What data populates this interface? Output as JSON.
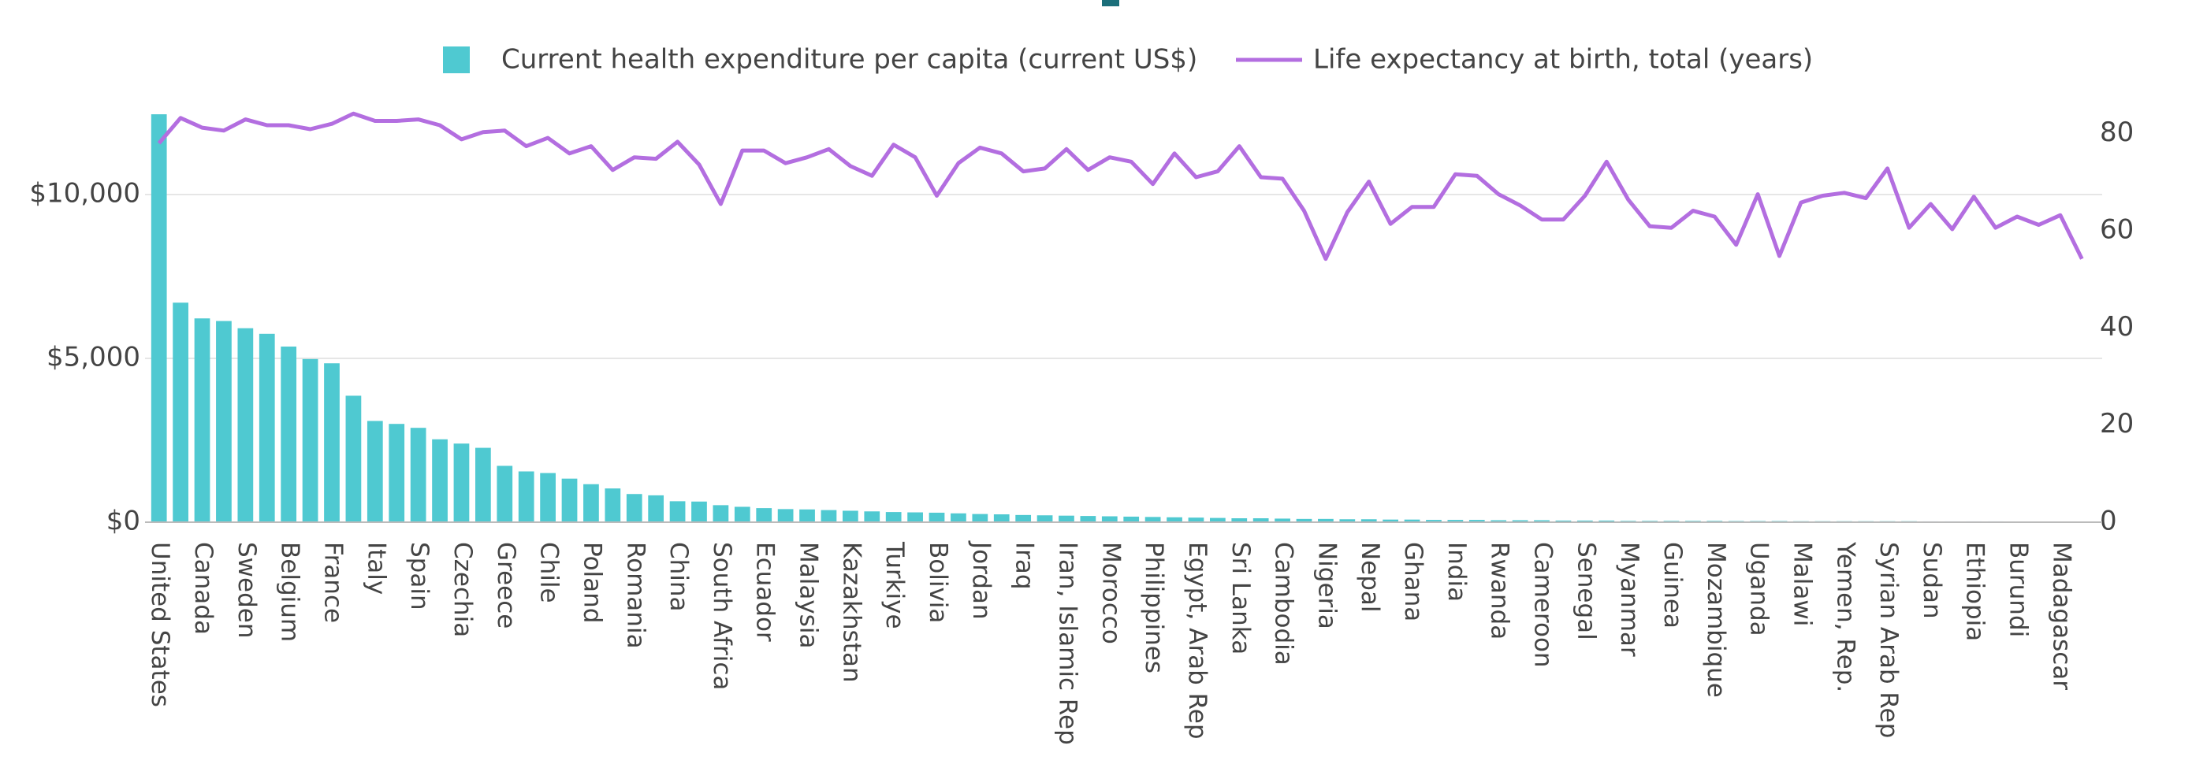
{
  "chart_data": {
    "type": "bar",
    "categories": [
      "United States",
      null,
      "Canada",
      null,
      "Sweden",
      null,
      "Belgium",
      null,
      "France",
      null,
      "Italy",
      null,
      "Spain",
      null,
      "Czechia",
      null,
      "Greece",
      null,
      "Chile",
      null,
      "Poland",
      null,
      "Romania",
      null,
      "China",
      null,
      "South Africa",
      null,
      "Ecuador",
      null,
      "Malaysia",
      null,
      "Kazakhstan",
      null,
      "Turkiye",
      null,
      "Bolivia",
      null,
      "Jordan",
      null,
      "Iraq",
      null,
      "Iran, Islamic Rep",
      null,
      "Morocco",
      null,
      "Philippines",
      null,
      "Egypt, Arab Rep",
      null,
      "Sri Lanka",
      null,
      "Cambodia",
      null,
      "Nigeria",
      null,
      "Nepal",
      null,
      "Ghana",
      null,
      "India",
      null,
      "Rwanda",
      null,
      "Cameroon",
      null,
      "Senegal",
      null,
      "Myanmar",
      null,
      "Guinea",
      null,
      "Mozambique",
      null,
      "Uganda",
      null,
      "Malawi",
      null,
      "Yemen, Rep.",
      null,
      "Syrian Arab Rep",
      null,
      "Sudan",
      null,
      "Ethiopia",
      null,
      "Burundi",
      null,
      "Madagascar",
      null
    ],
    "series": [
      {
        "name": "Current health expenditure per capita (current US$)",
        "color": "#4fc9d1",
        "axis": "y",
        "values": [
          12450,
          6700,
          6220,
          6140,
          5920,
          5750,
          5360,
          4980,
          4850,
          3860,
          3090,
          3000,
          2880,
          2530,
          2400,
          2270,
          1720,
          1550,
          1500,
          1330,
          1160,
          1030,
          860,
          820,
          640,
          630,
          520,
          470,
          430,
          400,
          390,
          370,
          350,
          330,
          310,
          300,
          290,
          270,
          250,
          240,
          220,
          210,
          200,
          190,
          180,
          170,
          160,
          150,
          140,
          130,
          120,
          120,
          110,
          100,
          100,
          90,
          90,
          80,
          80,
          70,
          70,
          70,
          60,
          60,
          60,
          50,
          50,
          50,
          40,
          40,
          40,
          40,
          40,
          35,
          35,
          35,
          30,
          30,
          30,
          30,
          30,
          30,
          25,
          25,
          25,
          25,
          20,
          20,
          20,
          20
        ]
      },
      {
        "name": "Life expectancy at birth, total (years)",
        "color": "#b36ee0",
        "axis": "y2",
        "type": "line",
        "values": [
          78.0,
          83.2,
          81.2,
          80.6,
          82.9,
          81.7,
          81.7,
          80.9,
          82.0,
          84.1,
          82.6,
          82.6,
          82.9,
          81.7,
          78.8,
          80.3,
          80.6,
          77.4,
          79.1,
          75.9,
          77.4,
          72.5,
          75.1,
          74.8,
          78.3,
          73.6,
          65.5,
          76.5,
          76.5,
          73.9,
          75.1,
          76.8,
          73.3,
          71.3,
          77.7,
          75.1,
          67.2,
          73.9,
          77.1,
          75.9,
          72.2,
          72.8,
          76.8,
          72.5,
          75.1,
          74.2,
          69.6,
          75.9,
          71.0,
          72.2,
          77.4,
          71.0,
          70.7,
          64.1,
          54.2,
          63.8,
          70.1,
          61.4,
          64.9,
          64.9,
          71.6,
          71.3,
          67.5,
          65.2,
          62.3,
          62.3,
          67.2,
          74.2,
          66.4,
          60.9,
          60.6,
          64.1,
          62.9,
          57.1,
          67.5,
          54.8,
          65.8,
          67.2,
          67.8,
          66.7,
          72.8,
          60.6,
          65.5,
          60.3,
          67.0,
          60.6,
          62.9,
          61.2,
          63.2,
          54.2
        ]
      }
    ],
    "ylim": [
      0,
      12500
    ],
    "yticks": [
      {
        "value": 0,
        "label": "$0"
      },
      {
        "value": 5000,
        "label": "$5,000"
      },
      {
        "value": 10000,
        "label": "$10,000"
      }
    ],
    "y2lim": [
      0,
      84.3
    ],
    "y2ticks": [
      0,
      20,
      40,
      60,
      80
    ],
    "grid": true
  }
}
